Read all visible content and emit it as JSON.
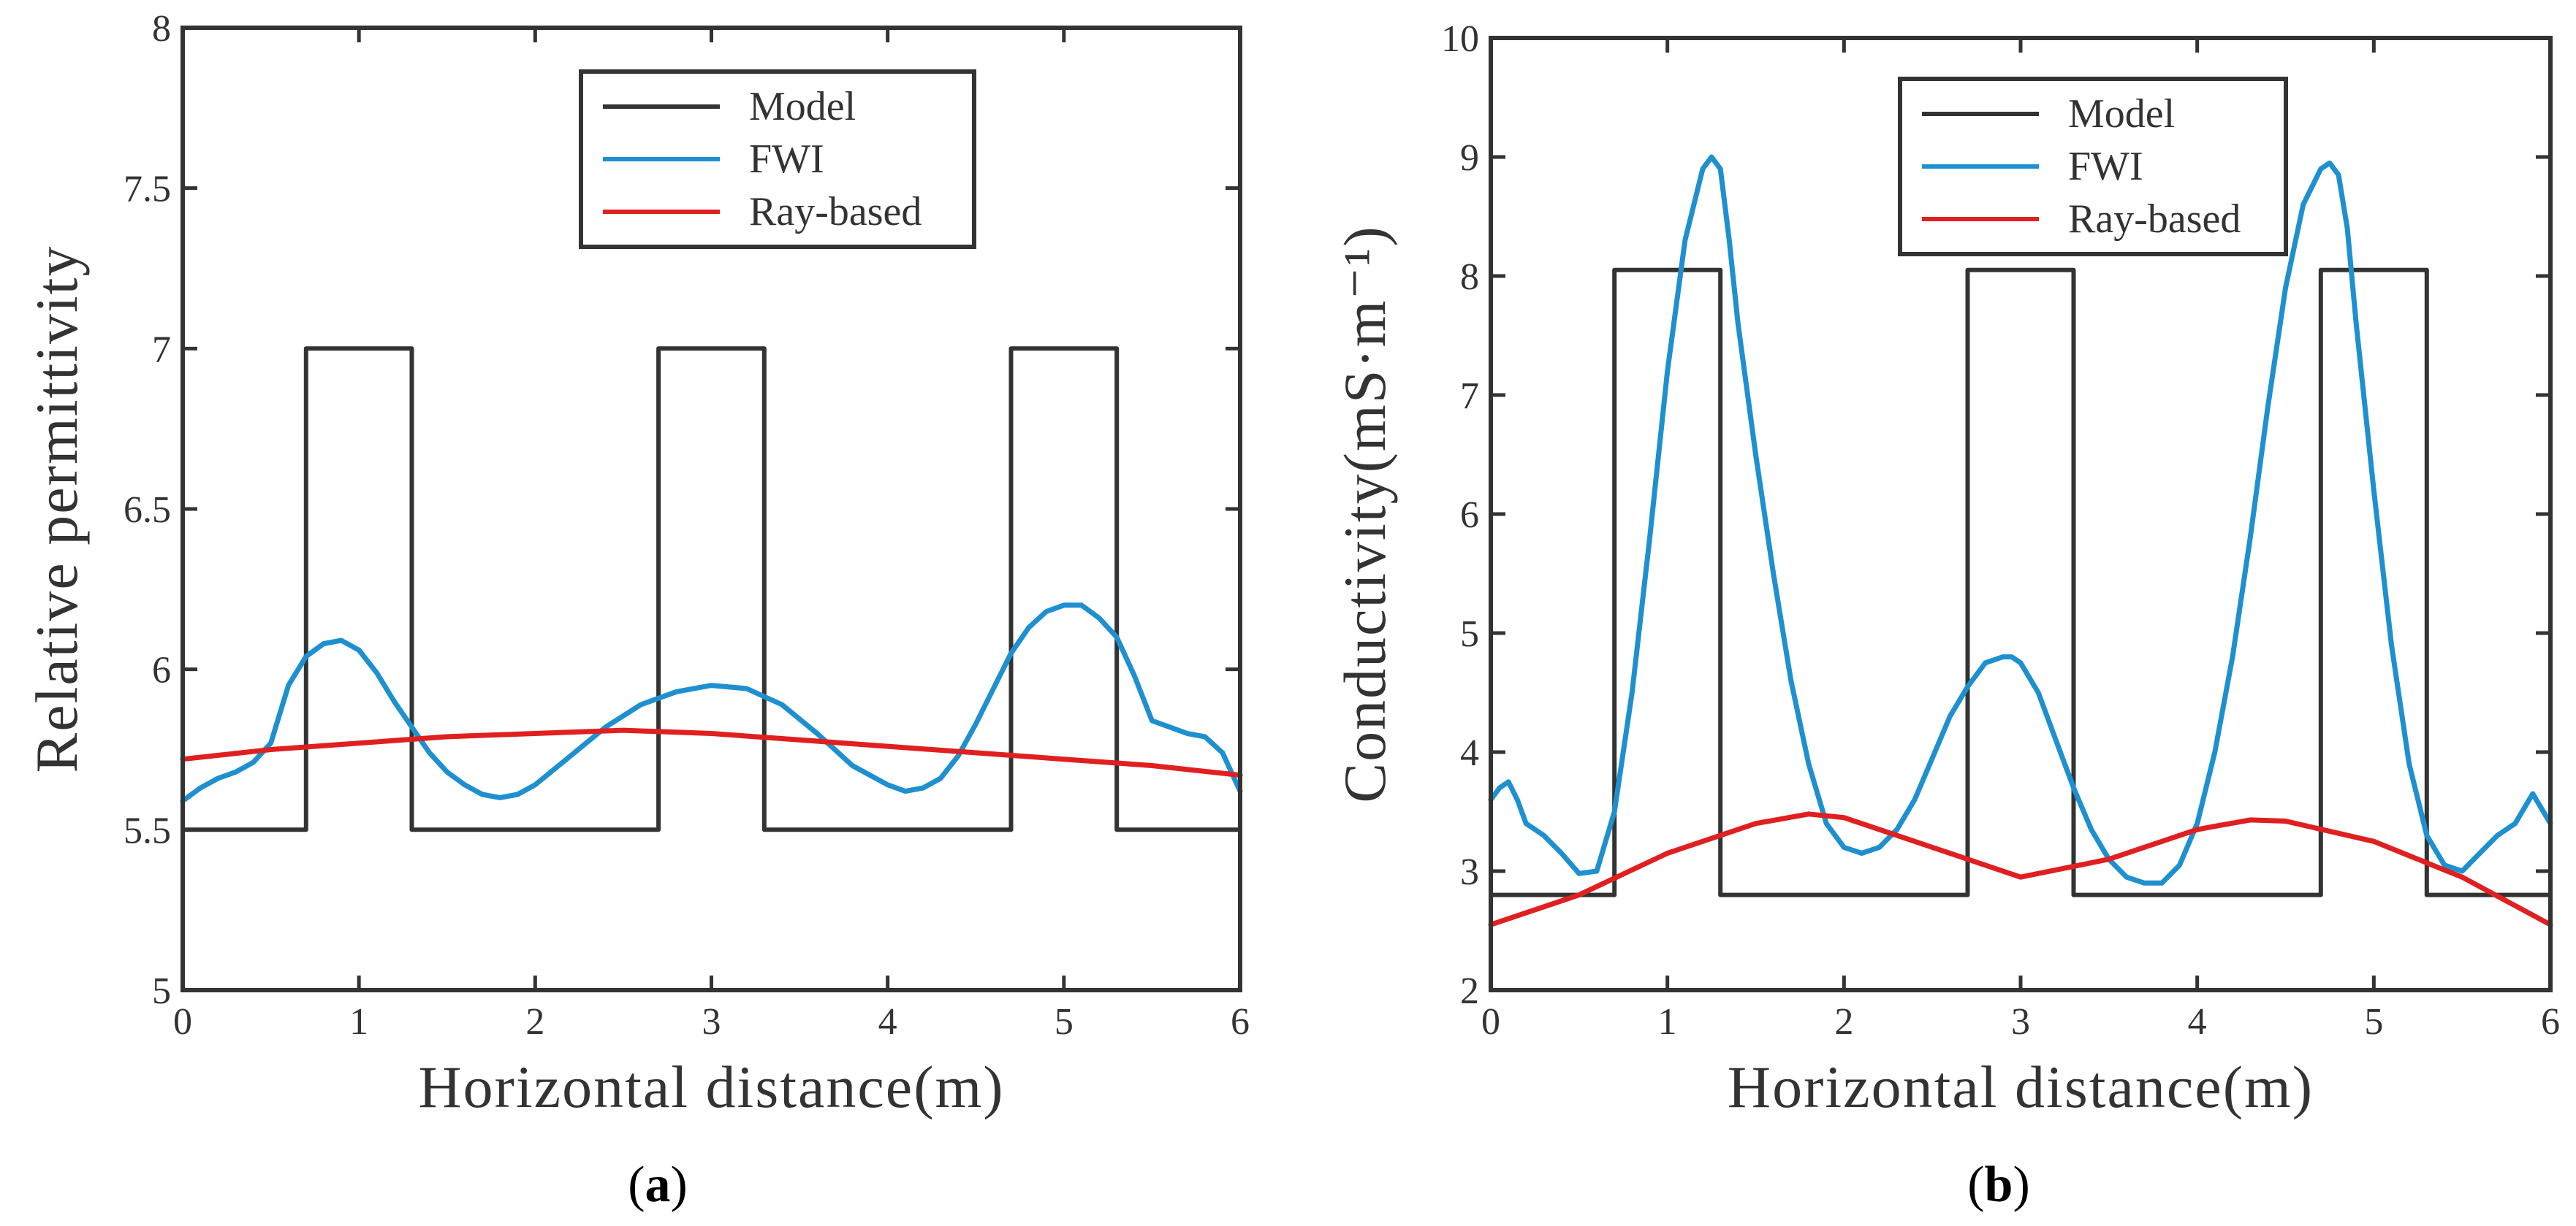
{
  "chart_data": [
    {
      "type": "line",
      "panel_label": "a",
      "xlabel": "Horizontal distance(m)",
      "ylabel": "Relative permittivity",
      "xlim": [
        0,
        6
      ],
      "ylim": [
        5,
        8
      ],
      "xticks": [
        0,
        1,
        2,
        3,
        4,
        5,
        6
      ],
      "yticks": [
        5,
        5.5,
        6,
        6.5,
        7,
        7.5,
        8
      ],
      "xtick_labels": [
        "0",
        "1",
        "2",
        "3",
        "4",
        "5",
        "6"
      ],
      "ytick_labels": [
        "5",
        "5.5",
        "6",
        "6.5",
        "7",
        "7.5",
        "8"
      ],
      "legend_position": "top-center",
      "series": [
        {
          "name": "Model",
          "color": "#333333",
          "x": [
            0,
            0.7,
            0.7,
            1.3,
            1.3,
            2.7,
            2.7,
            3.3,
            3.3,
            4.7,
            4.7,
            5.3,
            5.3,
            6
          ],
          "y": [
            5.5,
            5.5,
            7,
            7,
            5.5,
            5.5,
            7,
            7,
            5.5,
            5.5,
            7,
            7,
            5.5,
            5.5
          ]
        },
        {
          "name": "FWI",
          "color": "#1e90d0",
          "x": [
            0,
            0.1,
            0.2,
            0.3,
            0.4,
            0.5,
            0.6,
            0.7,
            0.8,
            0.9,
            1.0,
            1.1,
            1.2,
            1.3,
            1.4,
            1.5,
            1.6,
            1.7,
            1.8,
            1.9,
            2.0,
            2.2,
            2.4,
            2.6,
            2.8,
            3.0,
            3.2,
            3.4,
            3.6,
            3.8,
            4.0,
            4.1,
            4.2,
            4.3,
            4.4,
            4.5,
            4.6,
            4.7,
            4.8,
            4.9,
            5.0,
            5.1,
            5.2,
            5.3,
            5.4,
            5.5,
            5.6,
            5.7,
            5.8,
            5.9,
            6.0
          ],
          "y": [
            5.59,
            5.63,
            5.66,
            5.68,
            5.71,
            5.77,
            5.95,
            6.04,
            6.08,
            6.09,
            6.06,
            5.99,
            5.9,
            5.82,
            5.74,
            5.68,
            5.64,
            5.61,
            5.6,
            5.61,
            5.64,
            5.73,
            5.82,
            5.89,
            5.93,
            5.95,
            5.94,
            5.89,
            5.8,
            5.7,
            5.64,
            5.62,
            5.63,
            5.66,
            5.73,
            5.83,
            5.94,
            6.05,
            6.13,
            6.18,
            6.2,
            6.2,
            6.16,
            6.1,
            5.98,
            5.84,
            5.82,
            5.8,
            5.79,
            5.74,
            5.62
          ]
        },
        {
          "name": "Ray-based",
          "color": "#e02020",
          "x": [
            0,
            0.5,
            1.0,
            1.5,
            2.0,
            2.5,
            3.0,
            3.5,
            4.0,
            4.5,
            5.0,
            5.5,
            6.0
          ],
          "y": [
            5.72,
            5.75,
            5.77,
            5.79,
            5.8,
            5.81,
            5.8,
            5.78,
            5.76,
            5.74,
            5.72,
            5.7,
            5.67
          ]
        }
      ]
    },
    {
      "type": "line",
      "panel_label": "b",
      "xlabel": "Horizontal distance(m)",
      "ylabel": "Conductivity(mS·m⁻¹)",
      "xlim": [
        0,
        6
      ],
      "ylim": [
        2,
        10
      ],
      "xticks": [
        0,
        1,
        2,
        3,
        4,
        5,
        6
      ],
      "yticks": [
        2,
        3,
        4,
        5,
        6,
        7,
        8,
        9,
        10
      ],
      "xtick_labels": [
        "0",
        "1",
        "2",
        "3",
        "4",
        "5",
        "6"
      ],
      "ytick_labels": [
        "2",
        "3",
        "4",
        "5",
        "6",
        "7",
        "8",
        "9",
        "10"
      ],
      "legend_position": "top-center",
      "series": [
        {
          "name": "Model",
          "color": "#333333",
          "x": [
            0,
            0.7,
            0.7,
            1.3,
            1.3,
            2.7,
            2.7,
            3.3,
            3.3,
            4.7,
            4.7,
            5.3,
            5.3,
            6
          ],
          "y": [
            2.8,
            2.8,
            8.05,
            8.05,
            2.8,
            2.8,
            8.05,
            8.05,
            2.8,
            2.8,
            8.05,
            8.05,
            2.8,
            2.8
          ]
        },
        {
          "name": "FWI",
          "color": "#1e90d0",
          "x": [
            0,
            0.05,
            0.1,
            0.15,
            0.2,
            0.3,
            0.4,
            0.5,
            0.6,
            0.7,
            0.8,
            0.9,
            1.0,
            1.1,
            1.2,
            1.25,
            1.3,
            1.35,
            1.4,
            1.5,
            1.6,
            1.7,
            1.8,
            1.9,
            2.0,
            2.1,
            2.2,
            2.3,
            2.4,
            2.5,
            2.6,
            2.7,
            2.8,
            2.9,
            2.95,
            3.0,
            3.1,
            3.2,
            3.3,
            3.4,
            3.5,
            3.6,
            3.7,
            3.8,
            3.9,
            4.0,
            4.1,
            4.2,
            4.3,
            4.4,
            4.5,
            4.6,
            4.7,
            4.75,
            4.8,
            4.85,
            4.9,
            5.0,
            5.1,
            5.2,
            5.3,
            5.4,
            5.5,
            5.6,
            5.7,
            5.8,
            5.9,
            6.0
          ],
          "y": [
            3.6,
            3.7,
            3.75,
            3.6,
            3.4,
            3.3,
            3.15,
            2.98,
            3.0,
            3.5,
            4.5,
            5.8,
            7.2,
            8.3,
            8.9,
            9.0,
            8.9,
            8.3,
            7.6,
            6.5,
            5.5,
            4.6,
            3.9,
            3.4,
            3.2,
            3.15,
            3.2,
            3.35,
            3.6,
            3.95,
            4.3,
            4.55,
            4.75,
            4.8,
            4.8,
            4.75,
            4.5,
            4.1,
            3.7,
            3.35,
            3.1,
            2.95,
            2.9,
            2.9,
            3.05,
            3.4,
            4.0,
            4.8,
            5.8,
            6.9,
            7.9,
            8.6,
            8.9,
            8.95,
            8.85,
            8.4,
            7.6,
            6.2,
            4.9,
            3.9,
            3.3,
            3.05,
            3.0,
            3.15,
            3.3,
            3.4,
            3.65,
            3.4
          ]
        },
        {
          "name": "Ray-based",
          "color": "#e02020",
          "x": [
            0,
            0.5,
            1.0,
            1.5,
            1.8,
            2.0,
            2.5,
            3.0,
            3.5,
            4.0,
            4.3,
            4.5,
            5.0,
            5.5,
            6.0
          ],
          "y": [
            2.55,
            2.8,
            3.15,
            3.4,
            3.48,
            3.45,
            3.2,
            2.95,
            3.1,
            3.35,
            3.43,
            3.42,
            3.25,
            2.95,
            2.55
          ]
        }
      ]
    }
  ]
}
